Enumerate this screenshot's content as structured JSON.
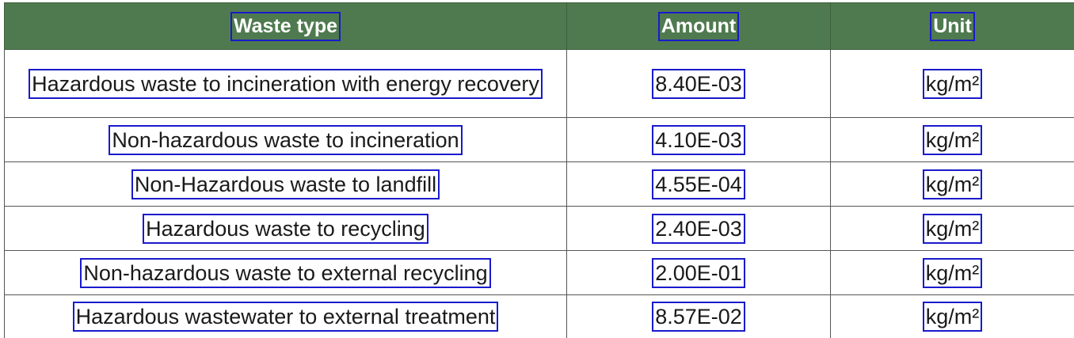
{
  "table": {
    "headers": {
      "waste_type": "Waste type",
      "amount": "Amount",
      "unit": "Unit"
    },
    "rows": [
      {
        "waste_type": "Hazardous waste to incineration with energy recovery",
        "amount": "8.40E-03",
        "unit": "kg/m²"
      },
      {
        "waste_type": "Non-hazardous waste to incineration",
        "amount": "4.10E-03",
        "unit": "kg/m²"
      },
      {
        "waste_type": "Non-Hazardous waste to landfill",
        "amount": "4.55E-04",
        "unit": "kg/m²"
      },
      {
        "waste_type": "Hazardous waste to recycling",
        "amount": "2.40E-03",
        "unit": "kg/m²"
      },
      {
        "waste_type": "Non-hazardous waste to external recycling",
        "amount": "2.00E-01",
        "unit": "kg/m²"
      },
      {
        "waste_type": "Hazardous wastewater to external treatment",
        "amount": "8.57E-02",
        "unit": "kg/m²"
      }
    ]
  },
  "colors": {
    "header_bg": "#4f7a4f",
    "header_text": "#ffffff",
    "highlight_box": "#1a1acc",
    "grid": "#555555"
  }
}
